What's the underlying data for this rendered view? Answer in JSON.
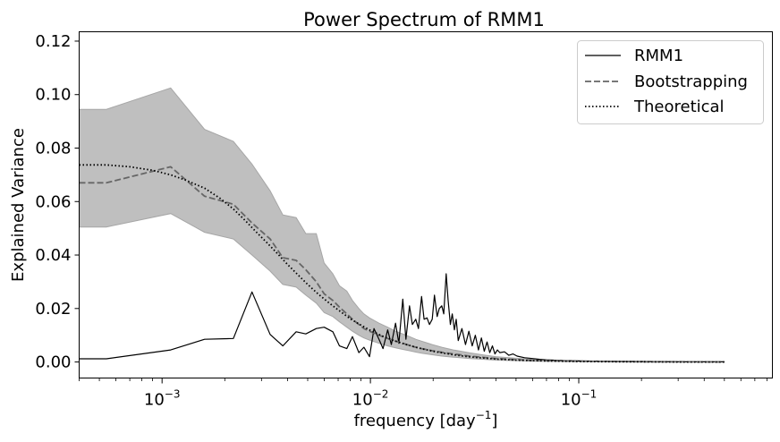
{
  "chart_data": {
    "type": "line",
    "title": "Power Spectrum of RMM1",
    "xlabel": "frequency [day$^{-1}$]",
    "xlabel_text": "frequency [day",
    "xlabel_sup": "−1",
    "xlabel_close": "]",
    "ylabel": "Explained Variance",
    "xscale": "log",
    "xlim": [
      0.0004,
      0.85
    ],
    "ylim": [
      -0.006,
      0.1235
    ],
    "grid": false,
    "legend_position": "top-right",
    "yticks": [
      0.0,
      0.02,
      0.04,
      0.06,
      0.08,
      0.1,
      0.12
    ],
    "ytick_labels": [
      "0.00",
      "0.02",
      "0.04",
      "0.06",
      "0.08",
      "0.10",
      "0.12"
    ],
    "xticks_major": [
      0.001,
      0.01,
      0.1
    ],
    "xtick_labels": [
      {
        "base": "10",
        "exp": "−3"
      },
      {
        "base": "10",
        "exp": "−2"
      },
      {
        "base": "10",
        "exp": "−1"
      }
    ],
    "series": [
      {
        "name": "RMM1",
        "style": "solid",
        "color": "#000000",
        "x": [
          0.0004,
          0.00054,
          0.0011,
          0.0016,
          0.0022,
          0.0027,
          0.0033,
          0.0038,
          0.0044,
          0.0049,
          0.0055,
          0.006,
          0.0066,
          0.0071,
          0.0077,
          0.0082,
          0.0088,
          0.0093,
          0.0099,
          0.0104,
          0.011,
          0.0115,
          0.0121,
          0.0126,
          0.0132,
          0.0137,
          0.0143,
          0.0148,
          0.0154,
          0.0159,
          0.0165,
          0.017,
          0.0176,
          0.0181,
          0.0187,
          0.0192,
          0.0198,
          0.0203,
          0.0209,
          0.0214,
          0.022,
          0.0225,
          0.0231,
          0.0236,
          0.0242,
          0.0247,
          0.0253,
          0.0258,
          0.0264,
          0.0275,
          0.0286,
          0.0297,
          0.0308,
          0.0319,
          0.033,
          0.0341,
          0.0352,
          0.0363,
          0.0374,
          0.0385,
          0.0396,
          0.0407,
          0.0418,
          0.044,
          0.0462,
          0.0484,
          0.0506,
          0.055,
          0.06,
          0.065,
          0.07,
          0.075,
          0.08,
          0.09,
          0.1,
          0.12,
          0.15,
          0.2,
          0.3,
          0.5
        ],
        "y": [
          0.0012,
          0.0012,
          0.0045,
          0.0085,
          0.0088,
          0.0262,
          0.0103,
          0.006,
          0.0113,
          0.0105,
          0.0125,
          0.013,
          0.0113,
          0.006,
          0.005,
          0.0095,
          0.0035,
          0.0055,
          0.002,
          0.0125,
          0.0085,
          0.005,
          0.012,
          0.0065,
          0.0145,
          0.007,
          0.0235,
          0.0085,
          0.021,
          0.014,
          0.016,
          0.0125,
          0.0245,
          0.016,
          0.0165,
          0.014,
          0.016,
          0.025,
          0.017,
          0.02,
          0.021,
          0.018,
          0.033,
          0.023,
          0.014,
          0.018,
          0.012,
          0.016,
          0.008,
          0.0125,
          0.0065,
          0.0115,
          0.006,
          0.01,
          0.0045,
          0.009,
          0.004,
          0.0075,
          0.0035,
          0.006,
          0.003,
          0.0045,
          0.0035,
          0.0038,
          0.0025,
          0.003,
          0.0022,
          0.0016,
          0.0013,
          0.001,
          0.0008,
          0.0007,
          0.0006,
          0.0005,
          0.0004,
          0.0003,
          0.0002,
          0.0002,
          0.0001,
          0.0001
        ]
      },
      {
        "name": "Bootstrapping",
        "style": "dashed",
        "color": "#666666",
        "x": [
          0.0004,
          0.00054,
          0.0011,
          0.0016,
          0.0022,
          0.0027,
          0.0033,
          0.0038,
          0.0044,
          0.0049,
          0.0055,
          0.006,
          0.0066,
          0.0071,
          0.0077,
          0.0082,
          0.0088,
          0.0093,
          0.0099,
          0.011,
          0.0121,
          0.0132,
          0.0143,
          0.0154,
          0.0165,
          0.0176,
          0.0198,
          0.022,
          0.025,
          0.03,
          0.035,
          0.04,
          0.05,
          0.06,
          0.08,
          0.1,
          0.15,
          0.2,
          0.3,
          0.5
        ],
        "y": [
          0.067,
          0.067,
          0.073,
          0.062,
          0.059,
          0.052,
          0.046,
          0.039,
          0.038,
          0.0345,
          0.03,
          0.0255,
          0.023,
          0.0205,
          0.018,
          0.016,
          0.014,
          0.0125,
          0.0115,
          0.01,
          0.0088,
          0.0078,
          0.007,
          0.0062,
          0.0055,
          0.005,
          0.0042,
          0.0036,
          0.003,
          0.0022,
          0.0017,
          0.0013,
          0.0009,
          0.0006,
          0.0004,
          0.0003,
          0.0002,
          0.0001,
          0.0001,
          0.0
        ]
      },
      {
        "name": "Theoretical",
        "style": "dotted",
        "color": "#000000",
        "x": [
          0.0004,
          0.00054,
          0.0007,
          0.0009,
          0.0011,
          0.0013,
          0.0016,
          0.0019,
          0.0022,
          0.0025,
          0.0028,
          0.0032,
          0.0036,
          0.004,
          0.0045,
          0.005,
          0.0056,
          0.0063,
          0.007,
          0.008,
          0.009,
          0.01,
          0.0115,
          0.013,
          0.015,
          0.0175,
          0.02,
          0.025,
          0.03,
          0.04,
          0.05,
          0.07,
          0.1,
          0.15,
          0.2,
          0.3,
          0.5
        ],
        "y": [
          0.0737,
          0.0737,
          0.073,
          0.0717,
          0.07,
          0.068,
          0.065,
          0.0612,
          0.0572,
          0.053,
          0.049,
          0.0445,
          0.0403,
          0.0365,
          0.0325,
          0.029,
          0.0255,
          0.0222,
          0.0195,
          0.0162,
          0.0138,
          0.0118,
          0.0096,
          0.008,
          0.0064,
          0.005,
          0.004,
          0.0027,
          0.0019,
          0.0011,
          0.0007,
          0.0004,
          0.0002,
          0.0001,
          0.0001,
          0.0,
          0.0
        ]
      }
    ],
    "confidence_band": {
      "color": "#bfbfbf",
      "edge_color": "#a6a6a6",
      "x": [
        0.0004,
        0.00054,
        0.0011,
        0.0016,
        0.0022,
        0.0027,
        0.0033,
        0.0038,
        0.0044,
        0.0049,
        0.0055,
        0.006,
        0.0066,
        0.0071,
        0.0077,
        0.0082,
        0.0088,
        0.0093,
        0.0099,
        0.011,
        0.0121,
        0.0132,
        0.0143,
        0.0154,
        0.0165,
        0.0176,
        0.0198,
        0.022,
        0.025,
        0.03,
        0.035,
        0.04,
        0.05,
        0.06,
        0.08,
        0.1,
        0.15,
        0.2,
        0.3,
        0.5
      ],
      "upper": [
        0.0945,
        0.0945,
        0.1025,
        0.087,
        0.0825,
        0.074,
        0.064,
        0.055,
        0.054,
        0.048,
        0.048,
        0.037,
        0.033,
        0.0285,
        0.0265,
        0.023,
        0.02,
        0.018,
        0.0165,
        0.0145,
        0.013,
        0.0115,
        0.0105,
        0.0095,
        0.0085,
        0.0078,
        0.0065,
        0.0055,
        0.0045,
        0.0034,
        0.0026,
        0.002,
        0.0014,
        0.001,
        0.0006,
        0.0004,
        0.0003,
        0.0002,
        0.0001,
        0.0001
      ],
      "lower": [
        0.0505,
        0.0505,
        0.0555,
        0.0485,
        0.046,
        0.04,
        0.034,
        0.029,
        0.028,
        0.025,
        0.022,
        0.0185,
        0.017,
        0.015,
        0.013,
        0.0115,
        0.01,
        0.009,
        0.0082,
        0.007,
        0.006,
        0.0053,
        0.0047,
        0.0042,
        0.0037,
        0.0033,
        0.0027,
        0.0022,
        0.0018,
        0.0013,
        0.001,
        0.0007,
        0.0005,
        0.0003,
        0.0002,
        0.0001,
        0.0001,
        0.0,
        0.0,
        0.0
      ]
    }
  }
}
